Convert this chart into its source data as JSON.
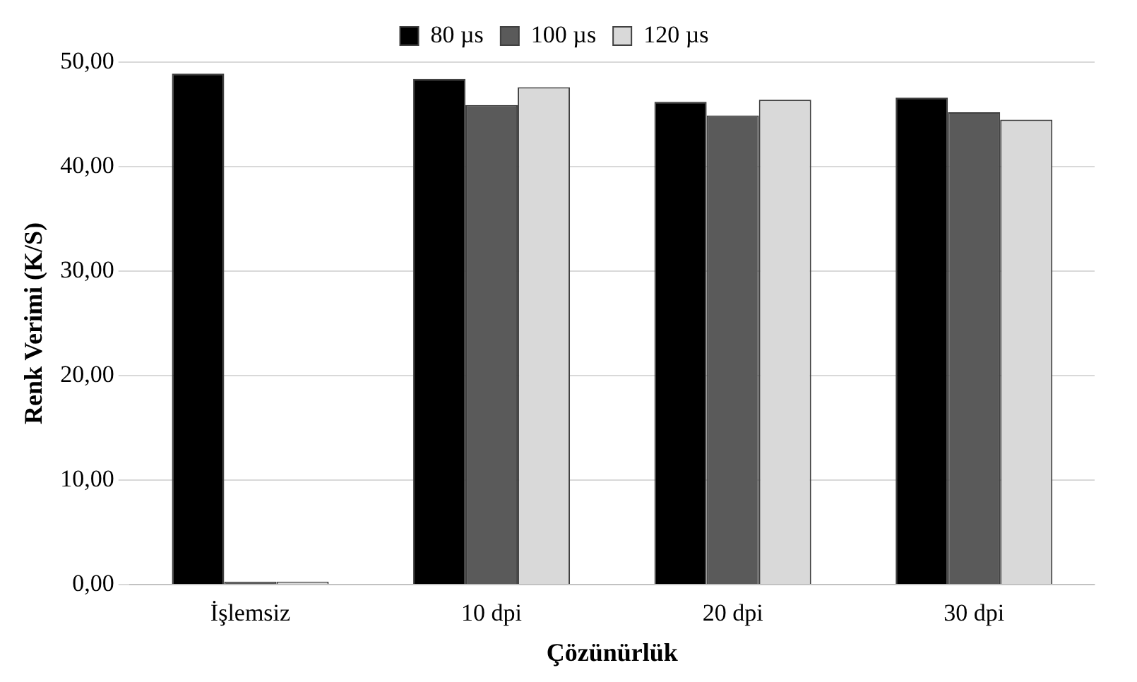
{
  "chart_data": {
    "type": "bar",
    "xlabel": "Çözünürlük",
    "ylabel": "Renk Verimi (K/S)",
    "categories": [
      "İşlemsiz",
      "10 dpi",
      "20 dpi",
      "30 dpi"
    ],
    "series": [
      {
        "name": "80 µs",
        "color": "#000000",
        "values": [
          48.9,
          48.4,
          46.2,
          46.6
        ]
      },
      {
        "name": "100 µs",
        "color": "#5a5a5a",
        "values": [
          0,
          45.9,
          44.9,
          45.2
        ]
      },
      {
        "name": "120 µs",
        "color": "#d9d9d9",
        "values": [
          0,
          47.6,
          46.4,
          44.5
        ]
      }
    ],
    "ylim": [
      0,
      50
    ],
    "yticks": [
      {
        "value": 0,
        "label": "0,00"
      },
      {
        "value": 10,
        "label": "10,00"
      },
      {
        "value": 20,
        "label": "20,00"
      },
      {
        "value": 30,
        "label": "30,00"
      },
      {
        "value": 40,
        "label": "40,00"
      },
      {
        "value": 50,
        "label": "50,00"
      }
    ],
    "grid": "y",
    "legend": "top"
  }
}
